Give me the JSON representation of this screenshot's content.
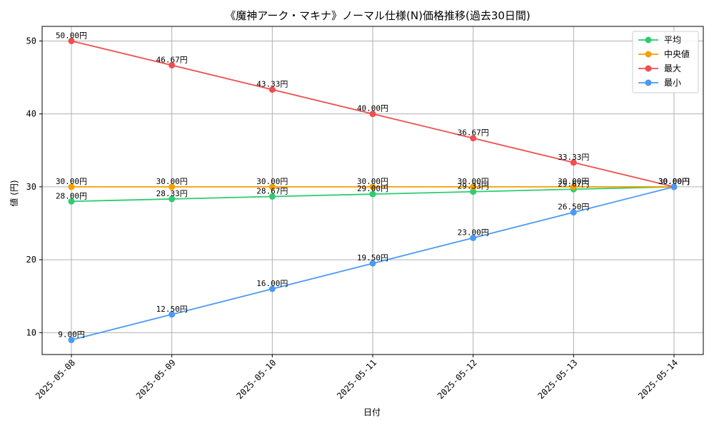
{
  "chart_data": {
    "type": "line",
    "title": "《魔神アーク・マキナ》ノーマル仕様(N)価格推移(過去30日間)",
    "xlabel": "日付",
    "ylabel": "値 (円)",
    "categories": [
      "2025-05-08",
      "2025-05-09",
      "2025-05-10",
      "2025-05-11",
      "2025-05-12",
      "2025-05-13",
      "2025-05-14"
    ],
    "yticks": [
      10,
      20,
      30,
      40,
      50
    ],
    "ylim": [
      7,
      52
    ],
    "grid": true,
    "legend_position": "top-right",
    "label_suffix": "円",
    "series": [
      {
        "name": "平均",
        "color": "#2ecc71",
        "values": [
          28.0,
          28.33,
          28.67,
          29.0,
          29.33,
          29.67,
          30.0
        ]
      },
      {
        "name": " 中央値",
        "color": "#f5a000",
        "values": [
          30.0,
          30.0,
          30.0,
          30.0,
          30.0,
          30.0,
          30.0
        ]
      },
      {
        "name": "最大",
        "color": "#f04e4e",
        "values": [
          50.0,
          46.67,
          43.33,
          40.0,
          36.67,
          33.33,
          30.0
        ]
      },
      {
        "name": "最小",
        "color": "#4a9af5",
        "values": [
          9.0,
          12.5,
          16.0,
          19.5,
          23.0,
          26.5,
          30.0
        ]
      }
    ]
  }
}
